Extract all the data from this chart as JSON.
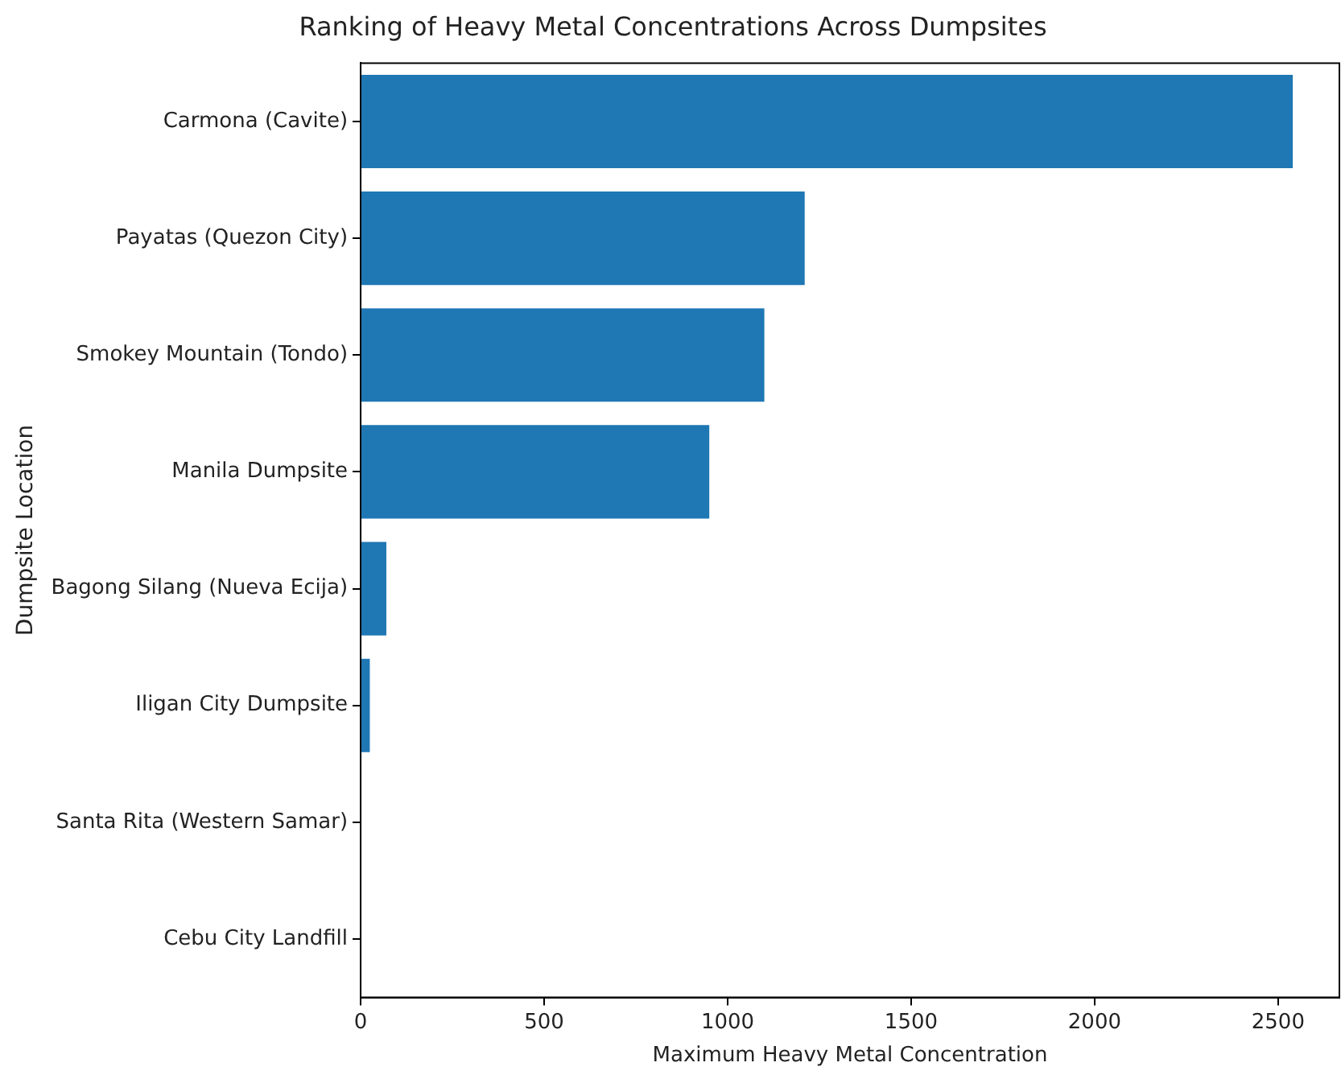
{
  "chart_data": {
    "type": "bar",
    "orientation": "horizontal",
    "title": "Ranking of Heavy Metal Concentrations Across Dumpsites",
    "xlabel": "Maximum Heavy Metal Concentration",
    "ylabel": "Dumpsite Location",
    "categories": [
      "Carmona (Cavite)",
      "Payatas (Quezon City)",
      "Smokey Mountain (Tondo)",
      "Manila Dumpsite",
      "Bagong Silang (Nueva Ecija)",
      "Iligan City Dumpsite",
      "Santa Rita (Western Samar)",
      "Cebu City Landfill"
    ],
    "values": [
      2540,
      1210,
      1100,
      950,
      70,
      25,
      0,
      0
    ],
    "color": "#1f77b4",
    "xlim": [
      0,
      2667
    ],
    "xticks": [
      0,
      500,
      1000,
      1500,
      2000,
      2500
    ],
    "grid": false,
    "legend": false
  }
}
